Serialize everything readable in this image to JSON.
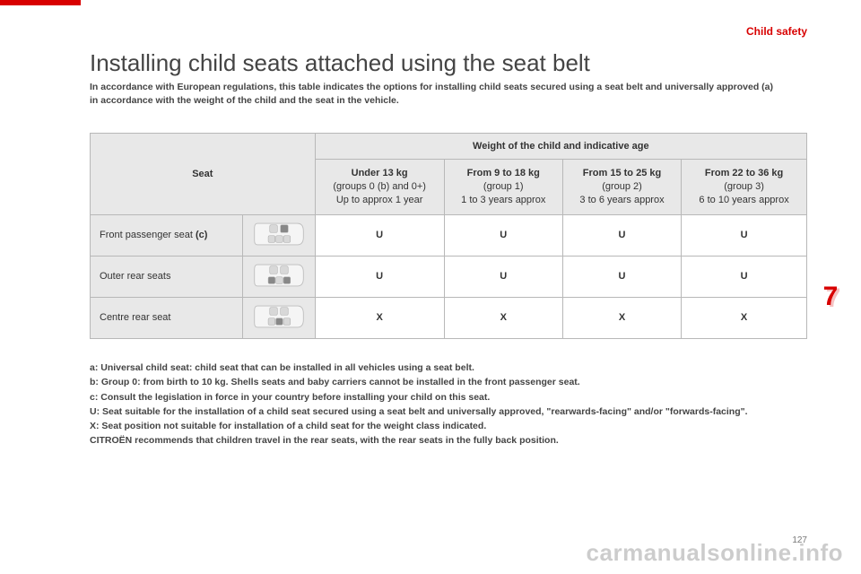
{
  "header": {
    "category": "Child safety",
    "title": "Installing child seats attached using the seat belt",
    "intro_line1": "In accordance with European regulations, this table indicates the options for installing child seats secured using a seat belt and universally approved (a)",
    "intro_line2": "in accordance with the weight of the child and the seat in the vehicle."
  },
  "table": {
    "seat_label": "Seat",
    "weight_span": "Weight of the child and indicative age",
    "cols": [
      {
        "strong": "Under 13 kg",
        "line2": "(groups 0 (b) and 0+)",
        "line3": "Up to approx 1 year"
      },
      {
        "strong": "From 9 to 18 kg",
        "line2": "(group 1)",
        "line3": "1 to 3 years approx"
      },
      {
        "strong": "From 15 to 25 kg",
        "line2": "(group 2)",
        "line3": "3 to 6 years approx"
      },
      {
        "strong": "From 22 to 36 kg",
        "line2": "(group 3)",
        "line3": "6 to 10 years approx"
      }
    ],
    "rows": [
      {
        "label": "Front passenger seat (c)",
        "seat_layout": "front",
        "v": [
          "U",
          "U",
          "U",
          "U"
        ]
      },
      {
        "label": "Outer rear seats",
        "seat_layout": "outer",
        "v": [
          "U",
          "U",
          "U",
          "U"
        ]
      },
      {
        "label": "Centre rear seat",
        "seat_layout": "centre",
        "v": [
          "X",
          "X",
          "X",
          "X"
        ]
      }
    ]
  },
  "notes": {
    "a": "a: Universal child seat: child seat that can be installed in all vehicles using a seat belt.",
    "b": "b: Group 0: from birth to 10 kg. Shells seats and baby carriers cannot be installed in the front passenger seat.",
    "c": "c: Consult the legislation in force in your country before installing your child on this seat.",
    "U": "U: Seat suitable for the installation of a child seat secured using a seat belt and universally approved, \"rearwards-facing\" and/or \"forwards-facing\".",
    "X": "X: Seat position not suitable for installation of a child seat for the weight class indicated.",
    "rec": "CITROËN recommends that children travel in the rear seats, with the rear seats in the fully back position."
  },
  "chapter": "7",
  "pagenum": "127",
  "watermark": "carmanualsonline.info",
  "colors": {
    "accent": "#d80000",
    "table_header_bg": "#e8e8e8",
    "border": "#b8b8b8",
    "text": "#444444"
  }
}
